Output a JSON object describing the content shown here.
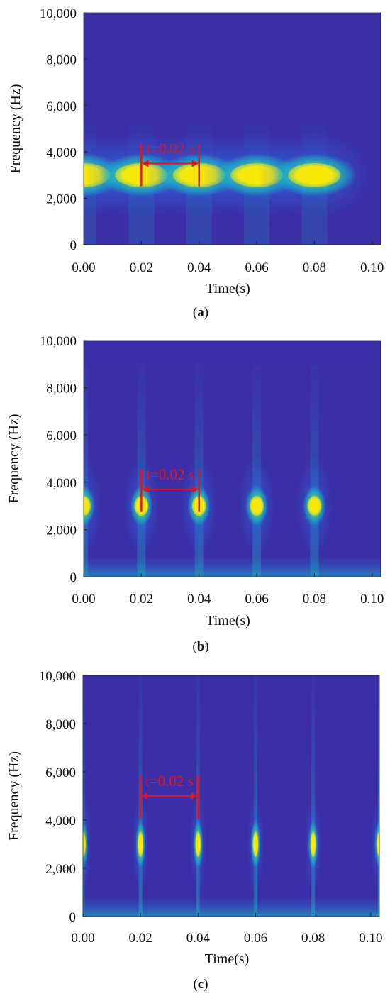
{
  "figure": {
    "colors": {
      "background": "#3b2ea6",
      "low": "#2c6ce8",
      "mid": "#12c2c6",
      "high": "#f4e80f",
      "peak": "#ffe600",
      "annotation": "#e8121a"
    }
  },
  "chart_data": [
    {
      "type": "heatmap",
      "panel_label": "(a)",
      "panel_letter": "a",
      "xlabel": "Time(s)",
      "ylabel": "Frequency (Hz)",
      "xlim": [
        0,
        0.103
      ],
      "ylim": [
        0,
        10000
      ],
      "xticks": [
        0,
        0.02,
        0.04,
        0.06,
        0.08,
        0.1
      ],
      "xtick_labels": [
        "0.00",
        "0.02",
        "0.04",
        "0.06",
        "0.08",
        "0.10"
      ],
      "yticks": [
        0,
        2000,
        4000,
        6000,
        8000,
        10000
      ],
      "ytick_labels": [
        "0",
        "2,000",
        "4,000",
        "6,000",
        "8,000",
        "10,000"
      ],
      "peaks": [
        {
          "time": 0.0,
          "frequency": 3000
        },
        {
          "time": 0.02,
          "frequency": 3000
        },
        {
          "time": 0.04,
          "frequency": 3000
        },
        {
          "time": 0.06,
          "frequency": 3000
        },
        {
          "time": 0.08,
          "frequency": 3000
        }
      ],
      "peak_shape": "wide",
      "annotation": {
        "text": "t=0.02 s",
        "t_start": 0.02,
        "t_end": 0.04,
        "frequency": 3500
      }
    },
    {
      "type": "heatmap",
      "panel_label": "(b)",
      "panel_letter": "b",
      "xlabel": "Time(s)",
      "ylabel": "Frequency (Hz)",
      "xlim": [
        0,
        0.103
      ],
      "ylim": [
        0,
        10000
      ],
      "xticks": [
        0,
        0.02,
        0.04,
        0.06,
        0.08,
        0.1
      ],
      "xtick_labels": [
        "0.00",
        "0.02",
        "0.04",
        "0.06",
        "0.08",
        "0.10"
      ],
      "yticks": [
        0,
        2000,
        4000,
        6000,
        8000,
        10000
      ],
      "ytick_labels": [
        "0",
        "2,000",
        "4,000",
        "6,000",
        "8,000",
        "10,000"
      ],
      "peaks": [
        {
          "time": 0.0,
          "frequency": 3000
        },
        {
          "time": 0.02,
          "frequency": 3000
        },
        {
          "time": 0.04,
          "frequency": 3000
        },
        {
          "time": 0.06,
          "frequency": 3000
        },
        {
          "time": 0.08,
          "frequency": 3000
        }
      ],
      "peak_shape": "medium",
      "annotation": {
        "text": "t=0.02 s",
        "t_start": 0.02,
        "t_end": 0.04,
        "frequency": 3700
      }
    },
    {
      "type": "heatmap",
      "panel_label": "(c)",
      "panel_letter": "c",
      "xlabel": "Time(s)",
      "ylabel": "Frequency (Hz)",
      "xlim": [
        0,
        0.103
      ],
      "ylim": [
        0,
        10000
      ],
      "xticks": [
        0,
        0.02,
        0.04,
        0.06,
        0.08,
        0.1
      ],
      "xtick_labels": [
        "0.00",
        "0.02",
        "0.04",
        "0.06",
        "0.08",
        "0.10"
      ],
      "yticks": [
        0,
        2000,
        4000,
        6000,
        8000,
        10000
      ],
      "ytick_labels": [
        "0",
        "2,000",
        "4,000",
        "6,000",
        "8,000",
        "10,000"
      ],
      "peaks": [
        {
          "time": 0.0,
          "frequency": 3000
        },
        {
          "time": 0.02,
          "frequency": 3000
        },
        {
          "time": 0.04,
          "frequency": 3000
        },
        {
          "time": 0.06,
          "frequency": 3000
        },
        {
          "time": 0.08,
          "frequency": 3000
        },
        {
          "time": 0.103,
          "frequency": 3000
        }
      ],
      "peak_shape": "narrow",
      "annotation": {
        "text": "t=0.02 s",
        "t_start": 0.02,
        "t_end": 0.04,
        "frequency": 5000
      }
    }
  ]
}
